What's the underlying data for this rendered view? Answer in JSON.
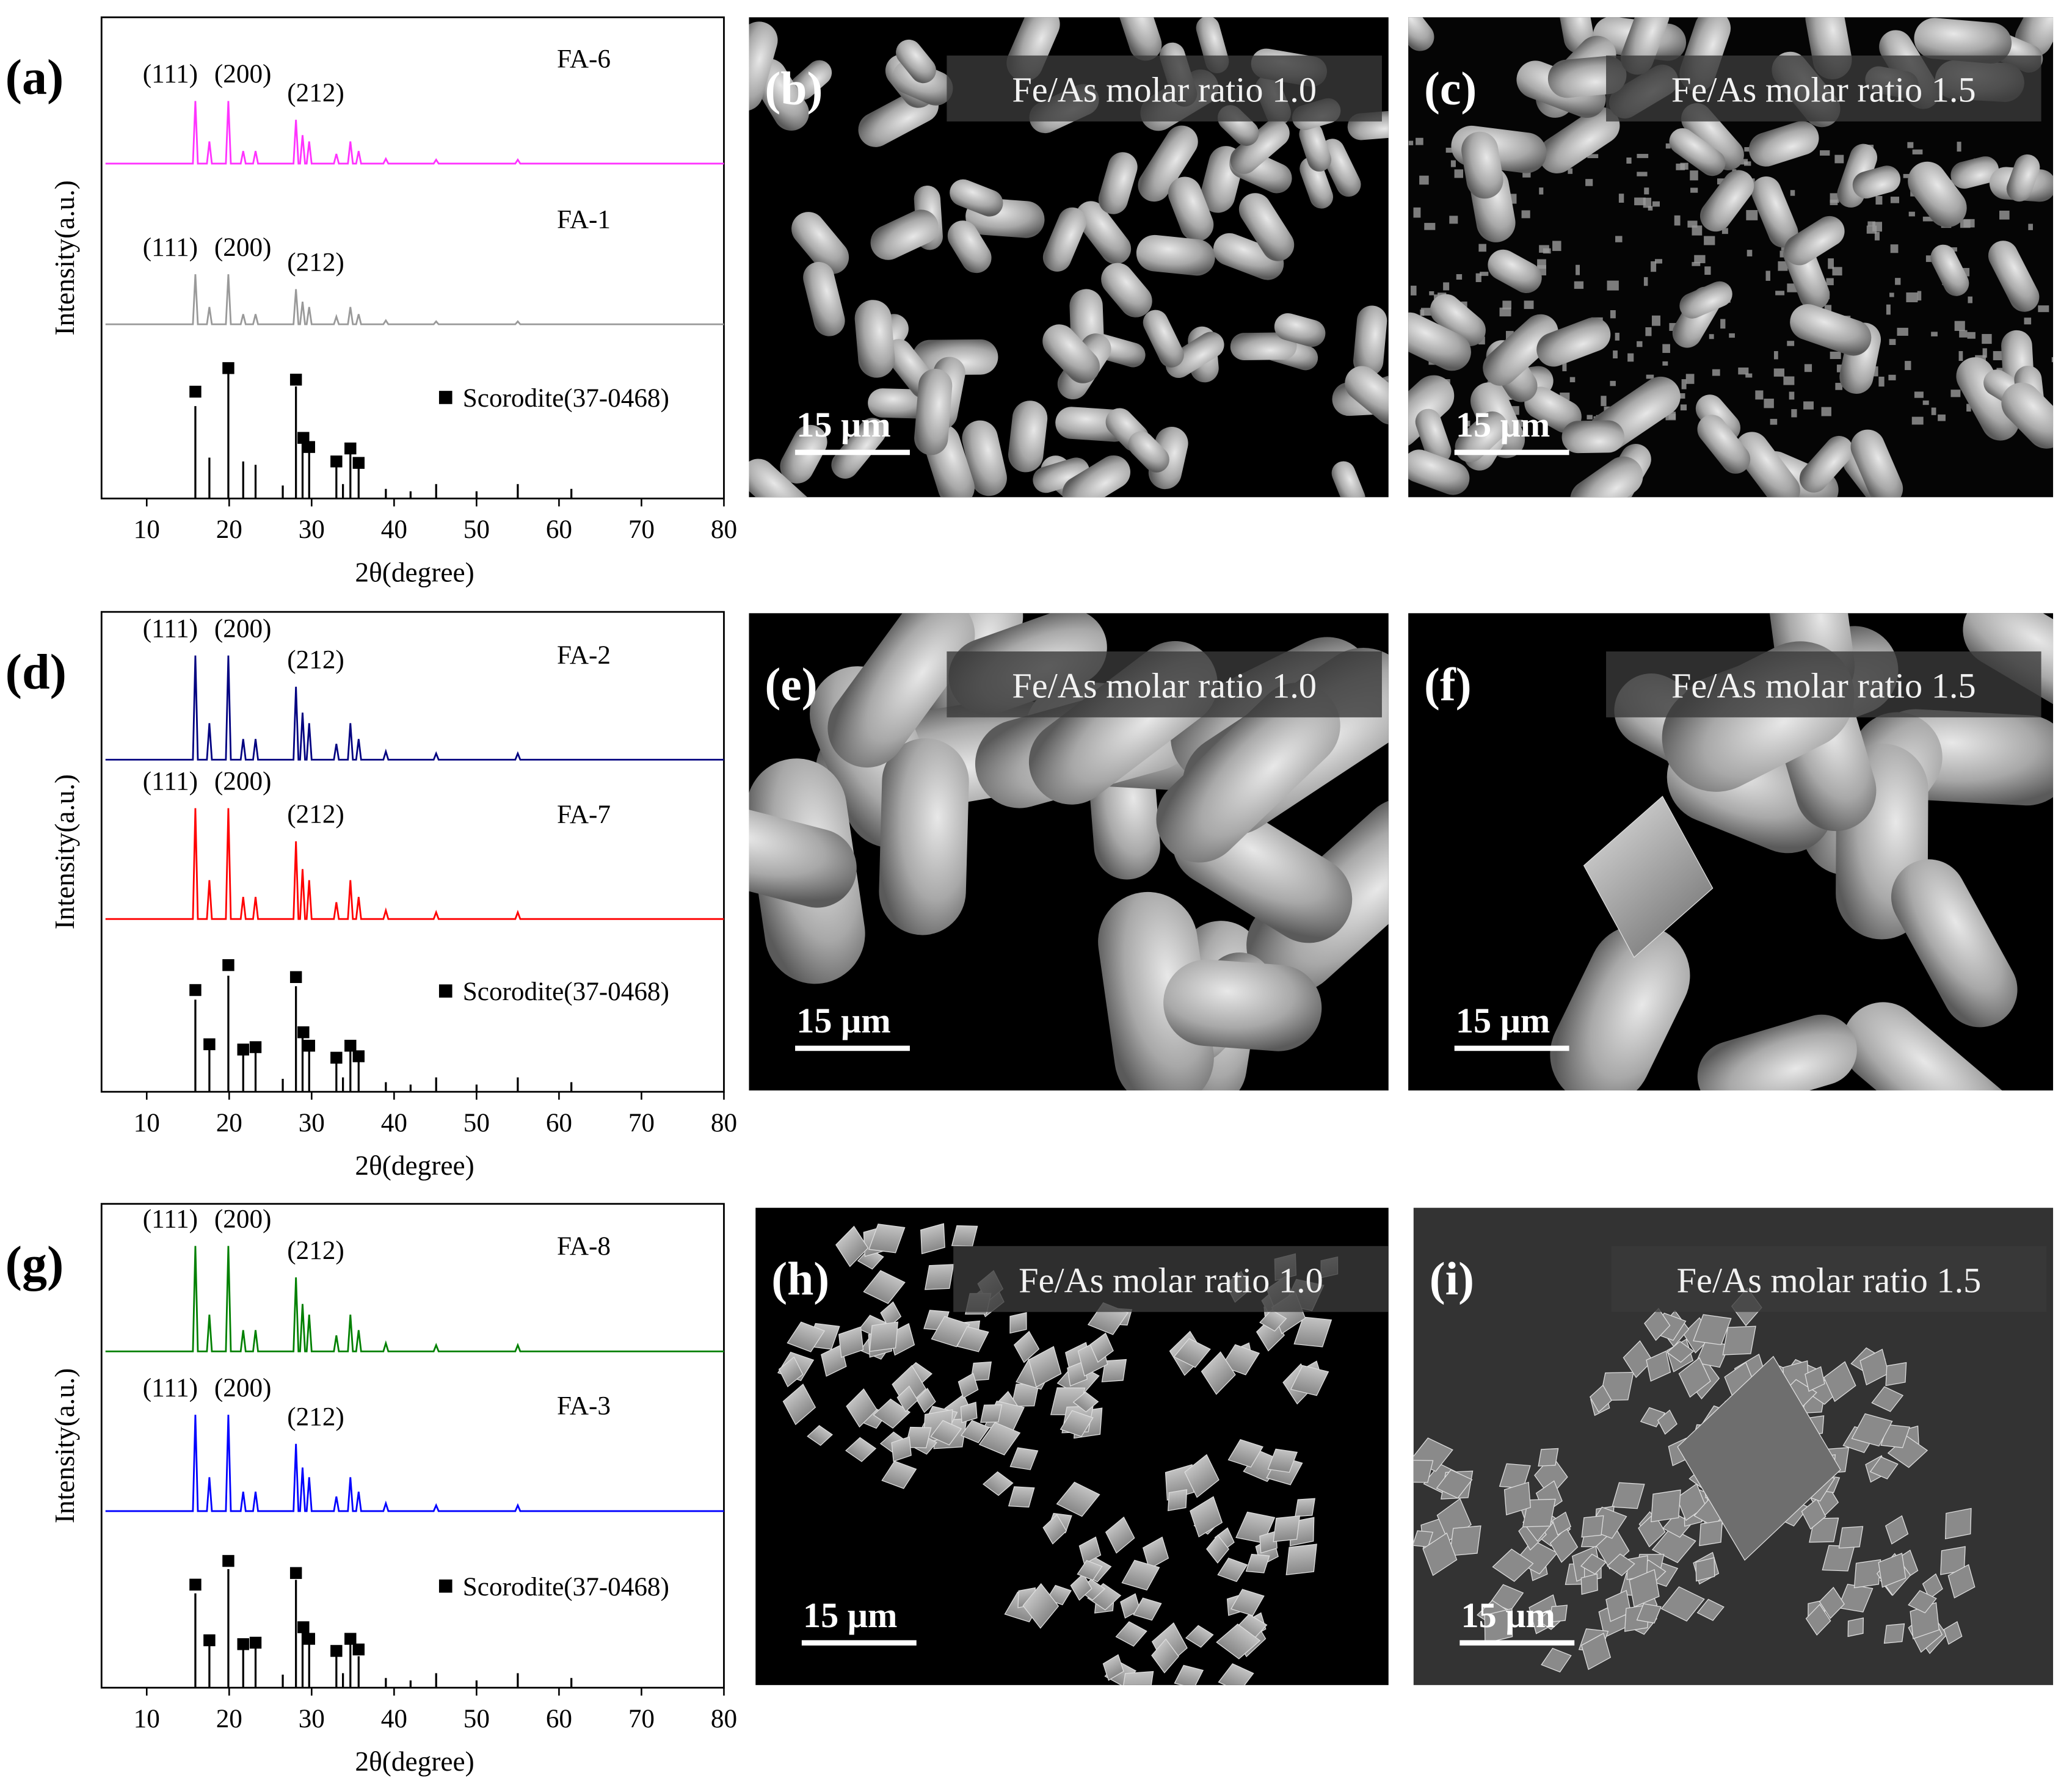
{
  "chart_data": [
    {
      "type": "line",
      "panel_label": "(a)",
      "x_label": "2θ(degree)",
      "y_label": "Intensity(a.u.)",
      "xlim": [
        5,
        80
      ],
      "xticks": [
        10,
        20,
        30,
        40,
        50,
        60,
        70,
        80
      ],
      "ylim": [
        0,
        100
      ],
      "legend": "right",
      "series": [
        {
          "name": "FA-6",
          "type": "line",
          "color": "#ff33ff",
          "peak_labels": [
            "(111)",
            "(200)",
            "(212)"
          ],
          "x": [
            5,
            15.6,
            15.9,
            16.2,
            17.3,
            17.6,
            17.9,
            19.6,
            19.9,
            20.2,
            21.4,
            21.7,
            22.0,
            22.9,
            23.2,
            23.5,
            27.8,
            28.1,
            28.4,
            28.6,
            28.9,
            29.2,
            29.4,
            29.7,
            30.0,
            32.7,
            33.0,
            33.3,
            34.4,
            34.7,
            35.0,
            35.4,
            35.7,
            36.0,
            38.7,
            39.0,
            39.3,
            44.8,
            45.1,
            45.4,
            54.7,
            55.0,
            55.3,
            80
          ],
          "values": [
            69.6,
            69.6,
            82.6,
            69.6,
            69.6,
            74.2,
            69.6,
            69.6,
            82.6,
            69.6,
            69.6,
            72.2,
            69.6,
            69.6,
            72.2,
            69.6,
            69.6,
            78.7,
            69.6,
            69.6,
            75.5,
            69.6,
            69.6,
            74.2,
            69.6,
            69.6,
            71.6,
            69.6,
            69.6,
            74.2,
            69.6,
            69.6,
            72.2,
            69.6,
            69.6,
            70.6,
            69.6,
            69.6,
            70.4,
            69.6,
            69.6,
            70.4,
            69.6,
            69.6
          ]
        },
        {
          "name": "FA-1",
          "type": "line",
          "color": "#999999",
          "peak_labels": [
            "(111)",
            "(200)",
            "(212)"
          ],
          "x": [
            5,
            15.6,
            15.9,
            16.2,
            17.3,
            17.6,
            17.9,
            19.6,
            19.9,
            20.2,
            21.4,
            21.7,
            22.0,
            22.9,
            23.2,
            23.5,
            27.8,
            28.1,
            28.4,
            28.6,
            28.9,
            29.2,
            29.4,
            29.7,
            30.0,
            32.7,
            33.0,
            33.3,
            34.4,
            34.7,
            35.0,
            35.4,
            35.7,
            36.0,
            38.7,
            39.0,
            39.3,
            44.8,
            45.1,
            45.4,
            54.7,
            55.0,
            55.3,
            80
          ],
          "values": [
            36.2,
            36.2,
            46.6,
            36.2,
            36.2,
            39.8,
            36.2,
            36.2,
            46.6,
            36.2,
            36.2,
            38.3,
            36.2,
            36.2,
            38.3,
            36.2,
            36.2,
            43.5,
            36.2,
            36.2,
            40.9,
            36.2,
            36.2,
            39.8,
            36.2,
            36.2,
            37.8,
            36.2,
            36.2,
            39.8,
            36.2,
            36.2,
            38.3,
            36.2,
            36.2,
            37.0,
            36.2,
            36.2,
            36.8,
            36.2,
            36.2,
            36.8,
            36.2,
            36.2
          ]
        },
        {
          "type": "stem",
          "color": "#000000",
          "x": [
            15.9,
            17.6,
            19.9,
            21.7,
            23.2,
            26.5,
            28.1,
            28.9,
            29.7,
            33.0,
            33.8,
            34.7,
            35.7,
            39.0,
            42.0,
            45.1,
            50.0,
            55.0,
            61.5
          ],
          "values": [
            19.2,
            8.5,
            26,
            7.7,
            7,
            2.7,
            23.3,
            11.8,
            10.4,
            6.6,
            3,
            9.6,
            7.9,
            2,
            1.5,
            3,
            1.5,
            3,
            2
          ]
        },
        {
          "name": "Scorodite(37-0468)",
          "type": "scatter",
          "marker": "square",
          "color": "#000000",
          "x": [
            15.9,
            19.9,
            28.1,
            29.0,
            29.7,
            33.0,
            34.7,
            35.7
          ],
          "values": [
            22.2,
            27.1,
            24.7,
            12.6,
            10.7,
            7.7,
            10.4,
            7.4
          ]
        }
      ]
    },
    {
      "type": "line",
      "panel_label": "(d)",
      "x_label": "2θ(degree)",
      "y_label": "Intensity(a.u.)",
      "xlim": [
        5,
        80
      ],
      "xticks": [
        10,
        20,
        30,
        40,
        50,
        60,
        70,
        80
      ],
      "ylim": [
        0,
        100
      ],
      "legend": "right",
      "series": [
        {
          "name": "FA-2",
          "type": "line",
          "color": "#000080",
          "peak_labels": [
            "(111)",
            "(200)",
            "(212)"
          ],
          "x": [
            5,
            15.6,
            15.9,
            16.2,
            17.3,
            17.6,
            17.9,
            19.6,
            19.9,
            20.2,
            21.4,
            21.7,
            22.0,
            22.9,
            23.2,
            23.5,
            27.8,
            28.1,
            28.4,
            28.6,
            28.9,
            29.2,
            29.4,
            29.7,
            30.0,
            32.7,
            33.0,
            33.3,
            34.4,
            34.7,
            35.0,
            35.4,
            35.7,
            36.0,
            38.7,
            39.0,
            39.3,
            44.8,
            45.1,
            45.4,
            54.7,
            55.0,
            55.3,
            80
          ],
          "values": [
            69.2,
            69.2,
            90.9,
            69.2,
            69.2,
            76.8,
            69.2,
            69.2,
            90.9,
            69.2,
            69.2,
            73.5,
            69.2,
            69.2,
            73.5,
            69.2,
            69.2,
            84.4,
            69.2,
            69.2,
            79.0,
            69.2,
            69.2,
            76.8,
            69.2,
            69.2,
            72.5,
            69.2,
            69.2,
            76.8,
            69.2,
            69.2,
            73.5,
            69.2,
            69.2,
            70.9,
            69.2,
            69.2,
            70.5,
            69.2,
            69.2,
            70.5,
            69.2,
            69.2
          ]
        },
        {
          "name": "FA-7",
          "type": "line",
          "color": "#ff0000",
          "peak_labels": [
            "(111)",
            "(200)",
            "(212)"
          ],
          "x": [
            5,
            15.6,
            15.9,
            16.2,
            17.3,
            17.6,
            17.9,
            19.6,
            19.9,
            20.2,
            21.4,
            21.7,
            22.0,
            22.9,
            23.2,
            23.5,
            27.8,
            28.1,
            28.4,
            28.6,
            28.9,
            29.2,
            29.4,
            29.7,
            30.0,
            32.7,
            33.0,
            33.3,
            34.4,
            34.7,
            35.0,
            35.4,
            35.7,
            36.0,
            38.7,
            39.0,
            39.3,
            44.8,
            45.1,
            45.4,
            54.7,
            55.0,
            55.3,
            80
          ],
          "values": [
            36.0,
            36.0,
            59.1,
            36.0,
            36.0,
            44.1,
            36.0,
            36.0,
            59.1,
            36.0,
            36.0,
            40.6,
            36.0,
            36.0,
            40.6,
            36.0,
            36.0,
            52.2,
            36.0,
            36.0,
            46.4,
            36.0,
            36.0,
            44.1,
            36.0,
            36.0,
            39.5,
            36.0,
            36.0,
            44.1,
            36.0,
            36.0,
            40.6,
            36.0,
            36.0,
            37.8,
            36.0,
            36.0,
            37.4,
            36.0,
            36.0,
            37.4,
            36.0,
            36.0
          ]
        },
        {
          "type": "stem",
          "color": "#000000",
          "x": [
            15.9,
            17.6,
            19.9,
            21.7,
            23.2,
            26.5,
            28.1,
            28.9,
            29.7,
            33.0,
            33.8,
            34.7,
            35.7,
            39.0,
            42.0,
            45.1,
            50.0,
            55.0,
            61.5
          ],
          "values": [
            19.2,
            9.1,
            24.2,
            7.7,
            8.5,
            2.7,
            22,
            11.3,
            9.1,
            6.3,
            3,
            8.5,
            6.3,
            2,
            1.5,
            3,
            1.5,
            3,
            2
          ]
        },
        {
          "name": "Scorodite(37-0468)",
          "type": "scatter",
          "marker": "square",
          "color": "#000000",
          "x": [
            15.9,
            17.6,
            19.9,
            21.7,
            23.2,
            28.1,
            29.0,
            29.7,
            33.0,
            34.7,
            35.7
          ],
          "values": [
            21.2,
            9.9,
            26.4,
            8.8,
            9.3,
            23.9,
            12.4,
            9.6,
            7.1,
            9.6,
            7.4
          ]
        }
      ]
    },
    {
      "type": "line",
      "panel_label": "(g)",
      "x_label": "2θ(degree)",
      "y_label": "Intensity(a.u.)",
      "xlim": [
        5,
        80
      ],
      "xticks": [
        10,
        20,
        30,
        40,
        50,
        60,
        70,
        80
      ],
      "ylim": [
        0,
        100
      ],
      "legend": "right",
      "series": [
        {
          "name": "FA-8",
          "type": "line",
          "color": "#008000",
          "peak_labels": [
            "(111)",
            "(200)",
            "(212)"
          ],
          "x": [
            5,
            15.6,
            15.9,
            16.2,
            17.3,
            17.6,
            17.9,
            19.6,
            19.9,
            20.2,
            21.4,
            21.7,
            22.0,
            22.9,
            23.2,
            23.5,
            27.8,
            28.1,
            28.4,
            28.6,
            28.9,
            29.2,
            29.4,
            29.7,
            30.0,
            32.7,
            33.0,
            33.3,
            34.4,
            34.7,
            35.0,
            35.4,
            35.7,
            36.0,
            38.7,
            39.0,
            39.3,
            44.8,
            45.1,
            45.4,
            54.7,
            55.0,
            55.3,
            80
          ],
          "values": [
            69.5,
            69.5,
            91.3,
            69.5,
            69.5,
            77.1,
            69.5,
            69.5,
            91.3,
            69.5,
            69.5,
            73.9,
            69.5,
            69.5,
            73.9,
            69.5,
            69.5,
            84.8,
            69.5,
            69.5,
            79.3,
            69.5,
            69.5,
            77.1,
            69.5,
            69.5,
            72.8,
            69.5,
            69.5,
            77.1,
            69.5,
            69.5,
            73.9,
            69.5,
            69.5,
            71.2,
            69.5,
            69.5,
            70.8,
            69.5,
            69.5,
            70.8,
            69.5,
            69.5
          ]
        },
        {
          "name": "FA-3",
          "type": "line",
          "color": "#0000ff",
          "peak_labels": [
            "(111)",
            "(200)",
            "(212)"
          ],
          "x": [
            5,
            15.6,
            15.9,
            16.2,
            17.3,
            17.6,
            17.9,
            19.6,
            19.9,
            20.2,
            21.4,
            21.7,
            22.0,
            22.9,
            23.2,
            23.5,
            27.8,
            28.1,
            28.4,
            28.6,
            28.9,
            29.2,
            29.4,
            29.7,
            30.0,
            32.7,
            33.0,
            33.3,
            34.4,
            34.7,
            35.0,
            35.4,
            35.7,
            36.0,
            38.7,
            39.0,
            39.3,
            44.8,
            45.1,
            45.4,
            54.7,
            55.0,
            55.3,
            80
          ],
          "values": [
            36.5,
            36.5,
            56.4,
            36.5,
            36.5,
            43.5,
            36.5,
            36.5,
            56.4,
            36.5,
            36.5,
            40.5,
            36.5,
            36.5,
            40.5,
            36.5,
            36.5,
            50.4,
            36.5,
            36.5,
            45.5,
            36.5,
            36.5,
            43.5,
            36.5,
            36.5,
            39.5,
            36.5,
            36.5,
            43.5,
            36.5,
            36.5,
            40.5,
            36.5,
            36.5,
            38.1,
            36.5,
            36.5,
            37.7,
            36.5,
            36.5,
            37.7,
            36.5,
            36.5
          ]
        },
        {
          "type": "stem",
          "color": "#000000",
          "x": [
            15.9,
            17.6,
            19.9,
            21.7,
            23.2,
            26.5,
            28.1,
            28.9,
            29.7,
            33.0,
            33.8,
            34.7,
            35.7,
            39.0,
            42.0,
            45.1,
            50.0,
            55.0,
            61.5
          ],
          "values": [
            19.5,
            9.5,
            24.5,
            8,
            8.5,
            2.7,
            22.3,
            11.5,
            9.5,
            6.5,
            3,
            9,
            6.5,
            2,
            1.5,
            3,
            1.5,
            3,
            2
          ]
        },
        {
          "name": "Scorodite(37-0468)",
          "type": "scatter",
          "marker": "square",
          "color": "#000000",
          "x": [
            15.9,
            17.6,
            19.9,
            21.7,
            23.2,
            28.1,
            29.0,
            29.7,
            33.0,
            34.7,
            35.7
          ],
          "values": [
            21.3,
            9.8,
            26.2,
            9.0,
            9.3,
            23.7,
            12.5,
            10.1,
            7.6,
            10.1,
            7.9
          ]
        }
      ]
    }
  ],
  "images": [
    {
      "label": "(b)",
      "caption": "Fe/As molar ratio 1.0",
      "scale_bar": "15 μm"
    },
    {
      "label": "(c)",
      "caption": "Fe/As molar ratio 1.5",
      "scale_bar": "15 μm"
    },
    {
      "label": "(e)",
      "caption": "Fe/As molar ratio 1.0",
      "scale_bar": "15 μm"
    },
    {
      "label": "(f)",
      "caption": "Fe/As molar ratio 1.5",
      "scale_bar": "15 μm"
    },
    {
      "label": "(h)",
      "caption": "Fe/As molar ratio 1.0",
      "scale_bar": "15 μm"
    },
    {
      "label": "(i)",
      "caption": "Fe/As molar ratio 1.5",
      "scale_bar": "15 μm"
    }
  ]
}
